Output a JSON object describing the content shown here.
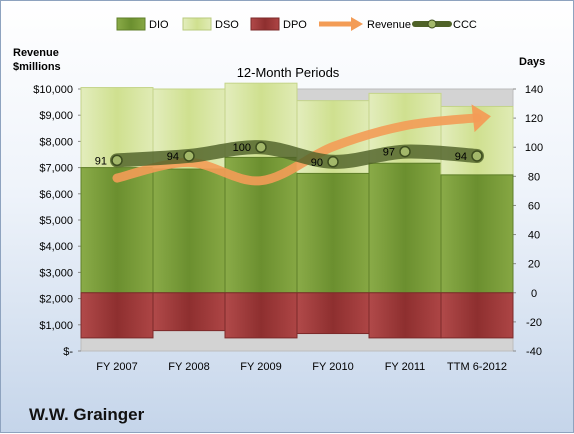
{
  "company": "W.W. Grainger",
  "chart_data": {
    "type": "bar",
    "title": "12-Month Periods",
    "y_left_label": [
      "Revenue",
      "$millions"
    ],
    "y_right_label": "Days",
    "categories": [
      "FY 2007",
      "FY 2008",
      "FY 2009",
      "FY 2010",
      "FY 2011",
      "TTM 6-2012"
    ],
    "y_left": {
      "min": 0,
      "max": 10000,
      "step": 1000,
      "ticks": [
        "$-",
        "$1,000",
        "$2,000",
        "$3,000",
        "$4,000",
        "$5,000",
        "$6,000",
        "$7,000",
        "$8,000",
        "$9,000",
        "$10,000"
      ]
    },
    "y_right": {
      "min": -40,
      "max": 140,
      "step": 20,
      "ticks": [
        "-40",
        "-20",
        "0",
        "20",
        "40",
        "60",
        "80",
        "100",
        "120",
        "140"
      ]
    },
    "series": [
      {
        "name": "DIO",
        "type": "bar",
        "axis": "right",
        "values": [
          86,
          85,
          93,
          82,
          89,
          81
        ]
      },
      {
        "name": "DSO",
        "type": "bar",
        "axis": "right",
        "values": [
          55,
          55,
          51,
          50,
          48,
          47
        ]
      },
      {
        "name": "DPO",
        "type": "bar",
        "axis": "right",
        "values": [
          -31,
          -26,
          -31,
          -28,
          -31,
          -31
        ]
      },
      {
        "name": "Revenue",
        "type": "line",
        "axis": "left",
        "values": [
          6600,
          7200,
          6500,
          7800,
          8600,
          8900
        ]
      },
      {
        "name": "CCC",
        "type": "line",
        "axis": "right",
        "values": [
          91,
          94,
          100,
          90,
          97,
          94
        ]
      }
    ],
    "data_labels": [
      "91",
      "94",
      "100",
      "90",
      "97",
      "94"
    ],
    "colors": {
      "DIO": "#76923c",
      "DSO": "#d7e4a8",
      "DPO": "#a03c3c",
      "Revenue": "#f39c56",
      "CCC": "#4f6228"
    },
    "legend_position": "top",
    "grid": false
  }
}
